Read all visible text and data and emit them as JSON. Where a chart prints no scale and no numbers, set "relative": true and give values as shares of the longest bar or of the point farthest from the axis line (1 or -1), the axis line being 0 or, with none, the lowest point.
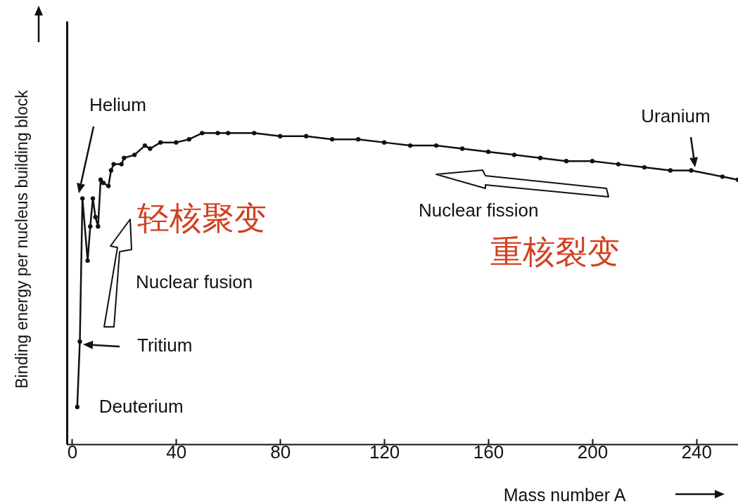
{
  "chart_data": {
    "type": "line",
    "relative": true,
    "xlabel": "Mass number A",
    "ylabel": "Binding energy per nucleus building block",
    "x": [
      2,
      3,
      4,
      6,
      7,
      8,
      9,
      10,
      11,
      12,
      14,
      15,
      16,
      19,
      20,
      24,
      28,
      30,
      34,
      40,
      45,
      50,
      56,
      60,
      70,
      80,
      90,
      100,
      110,
      120,
      130,
      140,
      150,
      160,
      170,
      180,
      190,
      200,
      210,
      220,
      230,
      238,
      250,
      256
    ],
    "values": [
      0.12,
      0.33,
      0.79,
      0.59,
      0.7,
      0.79,
      0.73,
      0.7,
      0.85,
      0.84,
      0.83,
      0.88,
      0.9,
      0.9,
      0.92,
      0.93,
      0.96,
      0.95,
      0.97,
      0.97,
      0.98,
      1.0,
      1.0,
      1.0,
      1.0,
      0.99,
      0.99,
      0.98,
      0.98,
      0.97,
      0.96,
      0.96,
      0.95,
      0.94,
      0.93,
      0.92,
      0.91,
      0.91,
      0.9,
      0.89,
      0.88,
      0.88,
      0.86,
      0.85
    ],
    "color": "#111111",
    "marker": "circle",
    "grid": false,
    "xlim": [
      -2,
      256
    ],
    "xticks": [
      0,
      40,
      80,
      120,
      160,
      200,
      240
    ],
    "annotations": [
      {
        "text": "Uranium",
        "x": 238,
        "y": 0.88
      },
      {
        "text": "Deuterium",
        "x": 2,
        "y": 0.12
      },
      "Helium",
      "Tritium",
      "Nuclear fusion",
      "Nuclear fission",
      "轻核聚变",
      "重核裂变"
    ]
  }
}
